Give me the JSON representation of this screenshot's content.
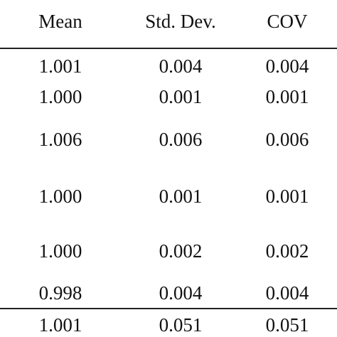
{
  "table": {
    "headers": [
      "Mean",
      "Std. Dev.",
      "COV"
    ],
    "rows": [
      [
        "1.001",
        "0.004",
        "0.004"
      ],
      [
        "1.000",
        "0.001",
        "0.001"
      ],
      [
        "1.006",
        "0.006",
        "0.006"
      ],
      [
        "1.000",
        "0.001",
        "0.001"
      ],
      [
        "1.000",
        "0.002",
        "0.002"
      ],
      [
        "0.998",
        "0.004",
        "0.004"
      ]
    ],
    "footer": [
      "1.001",
      "0.051",
      "0.051"
    ]
  }
}
